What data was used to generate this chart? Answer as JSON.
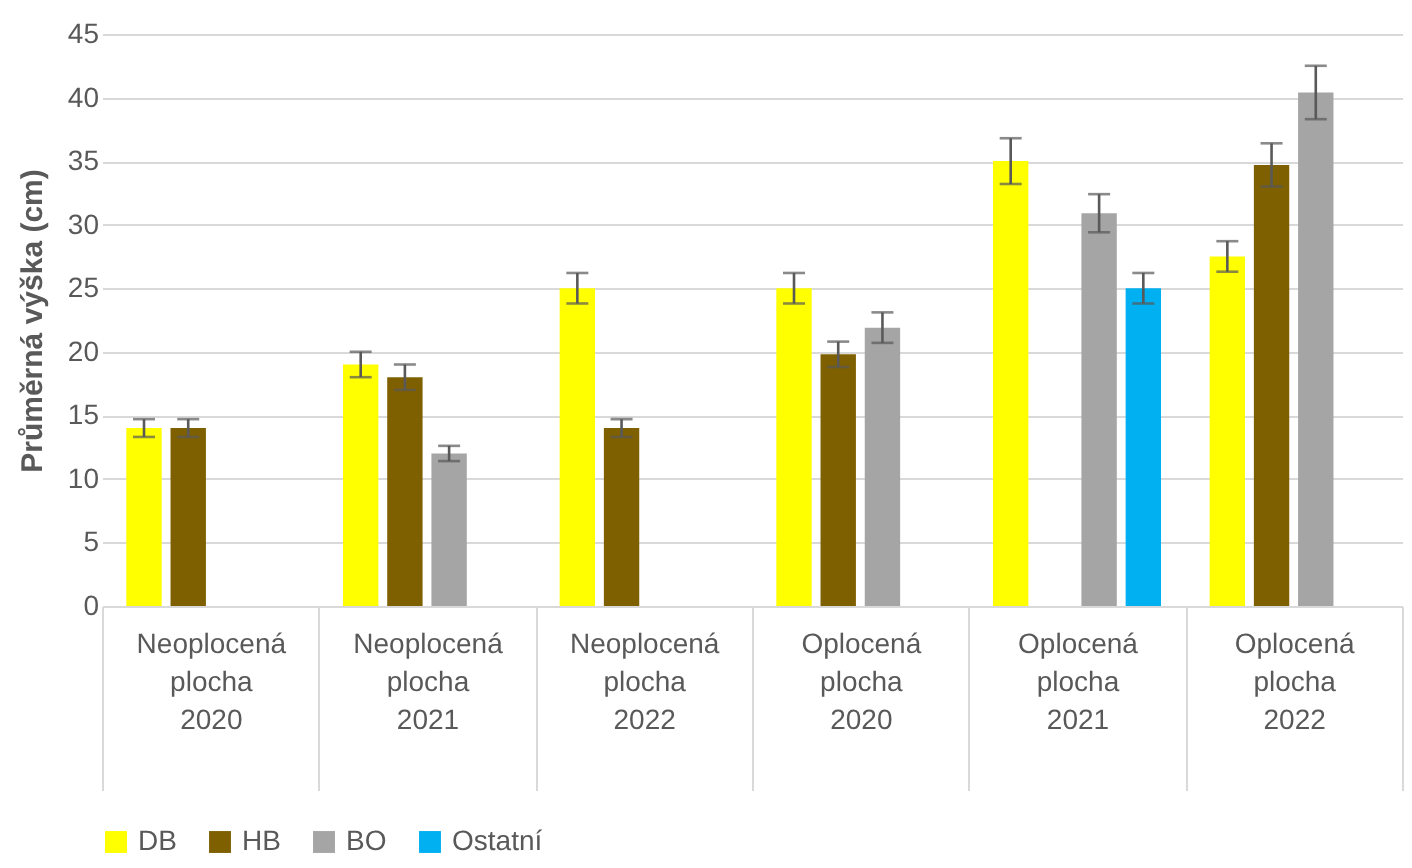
{
  "chart_data": {
    "type": "bar",
    "ylabel": "Průměrná výška (cm)",
    "categories": [
      "Neoplocená\nplocha\n\n2020",
      "Neoplocená\nplocha\n\n2021",
      "Neoplocená\nplocha\n\n2022",
      "Oplocená\nplocha\n\n2020",
      "Oplocená\nplocha\n\n2021",
      "Oplocená\nplocha\n\n2022"
    ],
    "series": [
      {
        "name": "DB",
        "color": "#ffff00",
        "values": [
          14,
          19,
          25,
          25,
          35,
          27.5
        ],
        "errors": [
          0.7,
          1,
          1.2,
          1.2,
          1.8,
          1.2
        ]
      },
      {
        "name": "HB",
        "color": "#7f6000",
        "values": [
          14,
          18,
          14,
          19.8,
          null,
          34.7
        ],
        "errors": [
          0.7,
          1,
          0.7,
          1,
          null,
          1.7
        ]
      },
      {
        "name": "BO",
        "color": "#a5a5a5",
        "values": [
          null,
          12,
          null,
          21.9,
          30.9,
          40.4
        ],
        "errors": [
          null,
          0.6,
          null,
          1.2,
          1.5,
          2.1
        ]
      },
      {
        "name": "Ostatní",
        "color": "#00b0f0",
        "values": [
          null,
          null,
          null,
          null,
          25,
          null
        ],
        "errors": [
          null,
          null,
          null,
          null,
          1.2,
          null
        ]
      }
    ],
    "ylim": [
      0,
      45
    ],
    "yticks": [
      0,
      5,
      10,
      15,
      20,
      25,
      30,
      35,
      40,
      45
    ],
    "grid": "y",
    "legend": "bottom"
  }
}
